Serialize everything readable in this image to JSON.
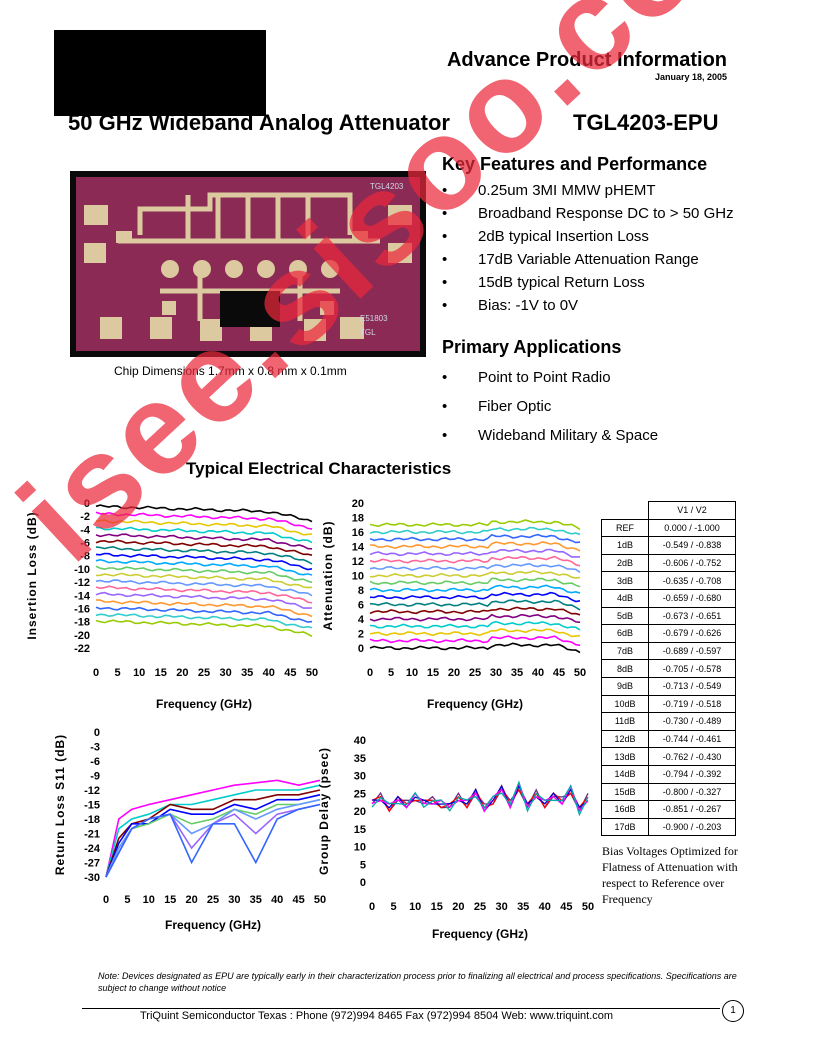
{
  "header": {
    "doc_type": "Advance Product Information",
    "date": "January 18, 2005",
    "product_title": "50 GHz Wideband Analog Attenuator",
    "part_number": "TGL4203-EPU"
  },
  "chip_photo": {
    "caption": "Chip Dimensions 1.7mm x 0.8 mm x 0.1mm",
    "die_label": "TGL4203",
    "colors": {
      "die": "#8a2a55",
      "metal": "#dcc9a0",
      "border": "#0a0a0a"
    }
  },
  "features": {
    "heading": "Key Features and Performance",
    "items": [
      "0.25um 3MI MMW pHEMT",
      "Broadband Response DC to > 50 GHz",
      "2dB typical Insertion Loss",
      "17dB Variable Attenuation Range",
      "15dB typical Return Loss",
      "Bias: -1V to 0V"
    ]
  },
  "applications": {
    "heading": "Primary Applications",
    "items": [
      "Point to Point Radio",
      "Fiber Optic",
      "Wideband Military & Space"
    ]
  },
  "bullet": "•",
  "characteristics_heading": "Typical  Electrical Characteristics",
  "chart_data": [
    {
      "type": "line",
      "ylabel": "Insertion Loss (dB)",
      "xlabel": "Frequency (GHz)",
      "xlim": [
        0,
        50
      ],
      "ylim": [
        -22,
        0
      ],
      "xticks": [
        "0",
        "5",
        "10",
        "15",
        "20",
        "25",
        "30",
        "35",
        "40",
        "45",
        "50"
      ],
      "yticks": [
        "0",
        "-2",
        "-4",
        "-6",
        "-8",
        "-10",
        "-12",
        "-14",
        "-16",
        "-18",
        "-20",
        "-22"
      ],
      "series_levels": [
        -0.5,
        -1.6,
        -2.7,
        -3.8,
        -4.8,
        -5.8,
        -6.8,
        -7.8,
        -8.8,
        -9.8,
        -10.8,
        -11.8,
        -12.8,
        -13.8,
        -14.9,
        -15.9,
        -16.9,
        -17.9
      ],
      "series_colors": [
        "#000000",
        "#ff00ff",
        "#ffff00",
        "#00ffff",
        "#800080",
        "#800000",
        "#008080",
        "#0000ff",
        "#00ccff",
        "#ccffcc",
        "#ffff99",
        "#99ccff",
        "#ff99cc",
        "#cc99ff",
        "#ffcc99",
        "#3366ff",
        "#33cccc",
        "#99cc00"
      ]
    },
    {
      "type": "line",
      "ylabel": "Attenuation (dB)",
      "xlabel": "Frequency (GHz)",
      "xlim": [
        0,
        50
      ],
      "ylim": [
        0,
        20
      ],
      "xticks": [
        "0",
        "5",
        "10",
        "15",
        "20",
        "25",
        "30",
        "35",
        "40",
        "45",
        "50"
      ],
      "yticks": [
        "20",
        "18",
        "16",
        "14",
        "12",
        "10",
        "8",
        "6",
        "4",
        "2",
        "0"
      ],
      "series_levels": [
        0,
        1,
        2,
        3,
        4,
        5,
        6,
        7,
        8,
        9,
        10,
        11,
        12,
        13,
        14,
        15,
        16,
        17
      ]
    },
    {
      "type": "line",
      "ylabel": "Return Loss S11 (dB)",
      "xlabel": "Frequency (GHz)",
      "xlim": [
        0,
        50
      ],
      "ylim": [
        -30,
        0
      ],
      "xticks": [
        "0",
        "5",
        "10",
        "15",
        "20",
        "25",
        "30",
        "35",
        "40",
        "45",
        "50"
      ],
      "yticks": [
        "0",
        "-3",
        "-6",
        "-9",
        "-12",
        "-15",
        "-18",
        "-21",
        "-24",
        "-27",
        "-30"
      ],
      "x": [
        0,
        3,
        6,
        10,
        15,
        20,
        25,
        30,
        35,
        40,
        45,
        50
      ],
      "series": [
        {
          "values": [
            -30,
            -18,
            -16,
            -15,
            -14,
            -13,
            -12,
            -11,
            -10.5,
            -10,
            -11,
            -10
          ]
        },
        {
          "values": [
            -30,
            -20,
            -18,
            -17,
            -15,
            -15,
            -14,
            -13,
            -12,
            -12,
            -12,
            -11
          ]
        },
        {
          "values": [
            -30,
            -22,
            -19,
            -18,
            -15,
            -16,
            -16,
            -14,
            -14,
            -13,
            -13,
            -12
          ]
        },
        {
          "values": [
            -30,
            -23,
            -19,
            -19,
            -16,
            -17,
            -17,
            -15,
            -16,
            -14,
            -14,
            -13
          ]
        },
        {
          "values": [
            -30,
            -24,
            -20,
            -19,
            -17,
            -19,
            -18,
            -16,
            -17,
            -15,
            -15,
            -14
          ]
        },
        {
          "values": [
            -30,
            -24,
            -20,
            -18,
            -17,
            -21,
            -19,
            -16,
            -18,
            -16,
            -15,
            -14
          ]
        },
        {
          "values": [
            -30,
            -25,
            -20,
            -18,
            -17,
            -24,
            -19,
            -17,
            -21,
            -17,
            -16,
            -15
          ]
        },
        {
          "values": [
            -30,
            -25,
            -20,
            -18,
            -17,
            -27,
            -19,
            -19,
            -27,
            -18,
            -16,
            -15
          ]
        }
      ]
    },
    {
      "type": "line",
      "ylabel": "Group Delay (psec)",
      "xlabel": "Frequency (GHz)",
      "xlim": [
        0,
        50
      ],
      "ylim": [
        0,
        40
      ],
      "xticks": [
        "0",
        "5",
        "10",
        "15",
        "20",
        "25",
        "30",
        "35",
        "40",
        "45",
        "50"
      ],
      "yticks": [
        "40",
        "35",
        "30",
        "25",
        "20",
        "15",
        "10",
        "5",
        "0"
      ],
      "x": [
        0,
        2,
        4,
        6,
        8,
        10,
        12,
        14,
        16,
        18,
        20,
        22,
        24,
        26,
        28,
        30,
        32,
        34,
        36,
        38,
        40,
        42,
        44,
        46,
        48,
        50
      ],
      "values": [
        22,
        24,
        21,
        23,
        22,
        24,
        22,
        23,
        22,
        21,
        24,
        22,
        25,
        21,
        23,
        26,
        22,
        27,
        21,
        25,
        22,
        24,
        23,
        26,
        20,
        24
      ]
    }
  ],
  "bias_table": {
    "header": "V1   /   V2",
    "rows": [
      {
        "label": "REF",
        "v1": "0.000",
        "v2": "-1.000"
      },
      {
        "label": "1dB",
        "v1": "-0.549",
        "v2": "-0.838"
      },
      {
        "label": "2dB",
        "v1": "-0.606",
        "v2": "-0.752"
      },
      {
        "label": "3dB",
        "v1": "-0.635",
        "v2": "-0.708"
      },
      {
        "label": "4dB",
        "v1": "-0.659",
        "v2": "-0.680"
      },
      {
        "label": "5dB",
        "v1": "-0.673",
        "v2": "-0.651"
      },
      {
        "label": "6dB",
        "v1": "-0.679",
        "v2": "-0.626"
      },
      {
        "label": "7dB",
        "v1": "-0.689",
        "v2": "-0.597"
      },
      {
        "label": "8dB",
        "v1": "-0.705",
        "v2": "-0.578"
      },
      {
        "label": "9dB",
        "v1": "-0.713",
        "v2": "-0.549"
      },
      {
        "label": "10dB",
        "v1": "-0.719",
        "v2": "-0.518"
      },
      {
        "label": "11dB",
        "v1": "-0.730",
        "v2": "-0.489"
      },
      {
        "label": "12dB",
        "v1": "-0.744",
        "v2": "-0.461"
      },
      {
        "label": "13dB",
        "v1": "-0.762",
        "v2": "-0.430"
      },
      {
        "label": "14dB",
        "v1": "-0.794",
        "v2": "-0.392"
      },
      {
        "label": "15dB",
        "v1": "-0.800",
        "v2": "-0.327"
      },
      {
        "label": "16dB",
        "v1": "-0.851",
        "v2": "-0.267"
      },
      {
        "label": "17dB",
        "v1": "-0.900",
        "v2": "-0.203"
      }
    ],
    "note": "Bias Voltages Optimized for Flatness of Attenuation with respect to Reference over Frequency"
  },
  "note": "Note: Devices designated as EPU are typically early in their characterization process prior to finalizing all electrical and process specifications. Specifications are subject to change without notice",
  "footer": {
    "text": "TriQuint Semiconductor Texas : Phone (972)994 8465    Fax (972)994 8504  Web:  www.triquint.com",
    "page": "1"
  },
  "watermark": "isee.sisoo.com"
}
